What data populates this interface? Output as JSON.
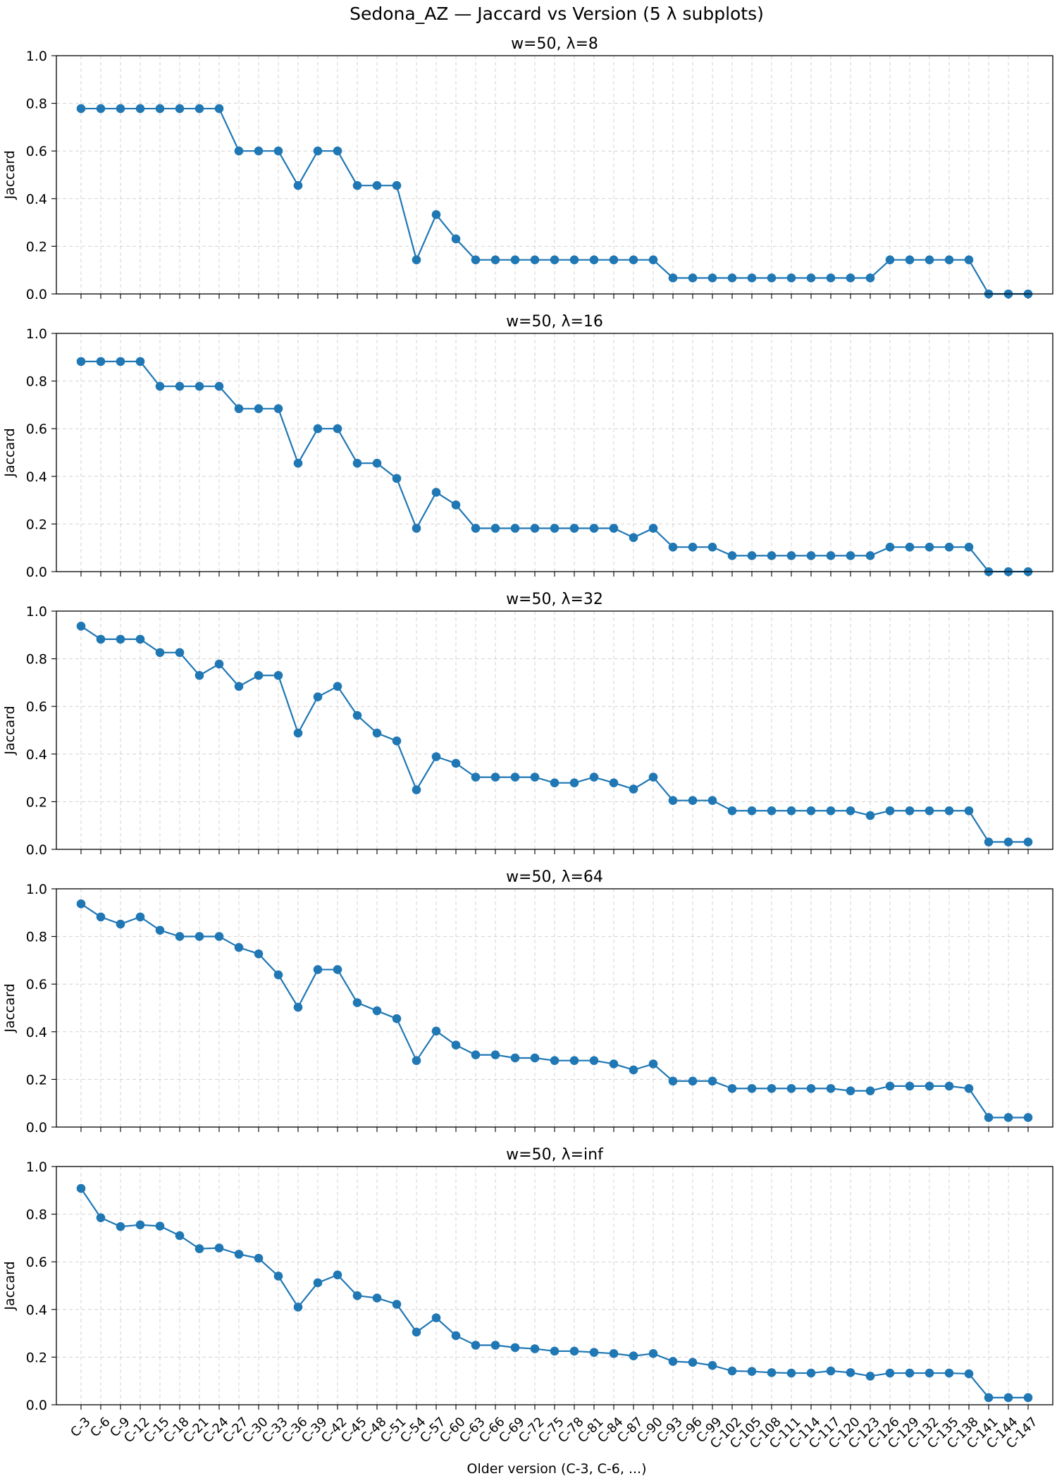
{
  "figure_title": "Sedona_AZ — Jaccard vs Version (5 λ subplots)",
  "xlabel": "Older version (C-3, C-6, ...)",
  "colors": {
    "series": "#1f77b4",
    "grid": "#b0b0b0"
  },
  "chart_data": [
    {
      "type": "line",
      "title": "w=50, λ=8",
      "ylabel": "Jaccard",
      "ylim": [
        0,
        1
      ],
      "yticks": [
        "0.0",
        "0.2",
        "0.4",
        "0.6",
        "0.8",
        "1.0"
      ],
      "grid": true,
      "categories": [
        "C-3",
        "C-6",
        "C-9",
        "C-12",
        "C-15",
        "C-18",
        "C-21",
        "C-24",
        "C-27",
        "C-30",
        "C-33",
        "C-36",
        "C-39",
        "C-42",
        "C-45",
        "C-48",
        "C-51",
        "C-54",
        "C-57",
        "C-60",
        "C-63",
        "C-66",
        "C-69",
        "C-72",
        "C-75",
        "C-78",
        "C-81",
        "C-84",
        "C-87",
        "C-90",
        "C-93",
        "C-96",
        "C-99",
        "C-102",
        "C-105",
        "C-108",
        "C-111",
        "C-114",
        "C-117",
        "C-120",
        "C-123",
        "C-126",
        "C-129",
        "C-132",
        "C-135",
        "C-138",
        "C-141",
        "C-144",
        "C-147"
      ],
      "values": [
        0.778,
        0.778,
        0.778,
        0.778,
        0.778,
        0.778,
        0.778,
        0.778,
        0.6,
        0.6,
        0.6,
        0.455,
        0.6,
        0.6,
        0.455,
        0.455,
        0.455,
        0.143,
        0.333,
        0.231,
        0.143,
        0.143,
        0.143,
        0.143,
        0.143,
        0.143,
        0.143,
        0.143,
        0.143,
        0.143,
        0.067,
        0.067,
        0.067,
        0.067,
        0.067,
        0.067,
        0.067,
        0.067,
        0.067,
        0.067,
        0.067,
        0.143,
        0.143,
        0.143,
        0.143,
        0.143,
        0.0,
        0.0,
        0.0
      ]
    },
    {
      "type": "line",
      "title": "w=50, λ=16",
      "ylabel": "Jaccard",
      "ylim": [
        0,
        1
      ],
      "yticks": [
        "0.0",
        "0.2",
        "0.4",
        "0.6",
        "0.8",
        "1.0"
      ],
      "grid": true,
      "categories": [
        "C-3",
        "C-6",
        "C-9",
        "C-12",
        "C-15",
        "C-18",
        "C-21",
        "C-24",
        "C-27",
        "C-30",
        "C-33",
        "C-36",
        "C-39",
        "C-42",
        "C-45",
        "C-48",
        "C-51",
        "C-54",
        "C-57",
        "C-60",
        "C-63",
        "C-66",
        "C-69",
        "C-72",
        "C-75",
        "C-78",
        "C-81",
        "C-84",
        "C-87",
        "C-90",
        "C-93",
        "C-96",
        "C-99",
        "C-102",
        "C-105",
        "C-108",
        "C-111",
        "C-114",
        "C-117",
        "C-120",
        "C-123",
        "C-126",
        "C-129",
        "C-132",
        "C-135",
        "C-138",
        "C-141",
        "C-144",
        "C-147"
      ],
      "values": [
        0.882,
        0.882,
        0.882,
        0.882,
        0.778,
        0.778,
        0.778,
        0.778,
        0.684,
        0.684,
        0.684,
        0.455,
        0.6,
        0.6,
        0.455,
        0.455,
        0.391,
        0.182,
        0.333,
        0.28,
        0.182,
        0.182,
        0.182,
        0.182,
        0.182,
        0.182,
        0.182,
        0.182,
        0.143,
        0.182,
        0.103,
        0.103,
        0.103,
        0.067,
        0.067,
        0.067,
        0.067,
        0.067,
        0.067,
        0.067,
        0.067,
        0.103,
        0.103,
        0.103,
        0.103,
        0.103,
        0.0,
        0.0,
        0.0
      ]
    },
    {
      "type": "line",
      "title": "w=50, λ=32",
      "ylabel": "Jaccard",
      "ylim": [
        0,
        1
      ],
      "yticks": [
        "0.0",
        "0.2",
        "0.4",
        "0.6",
        "0.8",
        "1.0"
      ],
      "grid": true,
      "categories": [
        "C-3",
        "C-6",
        "C-9",
        "C-12",
        "C-15",
        "C-18",
        "C-21",
        "C-24",
        "C-27",
        "C-30",
        "C-33",
        "C-36",
        "C-39",
        "C-42",
        "C-45",
        "C-48",
        "C-51",
        "C-54",
        "C-57",
        "C-60",
        "C-63",
        "C-66",
        "C-69",
        "C-72",
        "C-75",
        "C-78",
        "C-81",
        "C-84",
        "C-87",
        "C-90",
        "C-93",
        "C-96",
        "C-99",
        "C-102",
        "C-105",
        "C-108",
        "C-111",
        "C-114",
        "C-117",
        "C-120",
        "C-123",
        "C-126",
        "C-129",
        "C-132",
        "C-135",
        "C-138",
        "C-141",
        "C-144",
        "C-147"
      ],
      "values": [
        0.937,
        0.882,
        0.882,
        0.882,
        0.826,
        0.826,
        0.73,
        0.778,
        0.684,
        0.73,
        0.73,
        0.488,
        0.64,
        0.684,
        0.562,
        0.488,
        0.455,
        0.25,
        0.389,
        0.361,
        0.303,
        0.303,
        0.303,
        0.303,
        0.279,
        0.279,
        0.303,
        0.279,
        0.253,
        0.303,
        0.205,
        0.205,
        0.205,
        0.162,
        0.162,
        0.162,
        0.162,
        0.162,
        0.162,
        0.162,
        0.142,
        0.162,
        0.162,
        0.162,
        0.162,
        0.162,
        0.031,
        0.031,
        0.031
      ]
    },
    {
      "type": "line",
      "title": "w=50, λ=64",
      "ylabel": "Jaccard",
      "ylim": [
        0,
        1
      ],
      "yticks": [
        "0.0",
        "0.2",
        "0.4",
        "0.6",
        "0.8",
        "1.0"
      ],
      "grid": true,
      "categories": [
        "C-3",
        "C-6",
        "C-9",
        "C-12",
        "C-15",
        "C-18",
        "C-21",
        "C-24",
        "C-27",
        "C-30",
        "C-33",
        "C-36",
        "C-39",
        "C-42",
        "C-45",
        "C-48",
        "C-51",
        "C-54",
        "C-57",
        "C-60",
        "C-63",
        "C-66",
        "C-69",
        "C-72",
        "C-75",
        "C-78",
        "C-81",
        "C-84",
        "C-87",
        "C-90",
        "C-93",
        "C-96",
        "C-99",
        "C-102",
        "C-105",
        "C-108",
        "C-111",
        "C-114",
        "C-117",
        "C-120",
        "C-123",
        "C-126",
        "C-129",
        "C-132",
        "C-135",
        "C-138",
        "C-141",
        "C-144",
        "C-147"
      ],
      "values": [
        0.937,
        0.882,
        0.852,
        0.882,
        0.826,
        0.8,
        0.8,
        0.8,
        0.754,
        0.727,
        0.639,
        0.503,
        0.661,
        0.661,
        0.522,
        0.488,
        0.455,
        0.279,
        0.403,
        0.344,
        0.303,
        0.303,
        0.29,
        0.29,
        0.279,
        0.279,
        0.279,
        0.265,
        0.24,
        0.265,
        0.193,
        0.193,
        0.193,
        0.162,
        0.162,
        0.162,
        0.162,
        0.162,
        0.162,
        0.152,
        0.152,
        0.172,
        0.172,
        0.172,
        0.172,
        0.162,
        0.04,
        0.04,
        0.04
      ]
    },
    {
      "type": "line",
      "title": "w=50, λ=inf",
      "ylabel": "Jaccard",
      "ylim": [
        0,
        1
      ],
      "yticks": [
        "0.0",
        "0.2",
        "0.4",
        "0.6",
        "0.8",
        "1.0"
      ],
      "grid": true,
      "categories": [
        "C-3",
        "C-6",
        "C-9",
        "C-12",
        "C-15",
        "C-18",
        "C-21",
        "C-24",
        "C-27",
        "C-30",
        "C-33",
        "C-36",
        "C-39",
        "C-42",
        "C-45",
        "C-48",
        "C-51",
        "C-54",
        "C-57",
        "C-60",
        "C-63",
        "C-66",
        "C-69",
        "C-72",
        "C-75",
        "C-78",
        "C-81",
        "C-84",
        "C-87",
        "C-90",
        "C-93",
        "C-96",
        "C-99",
        "C-102",
        "C-105",
        "C-108",
        "C-111",
        "C-114",
        "C-117",
        "C-120",
        "C-123",
        "C-126",
        "C-129",
        "C-132",
        "C-135",
        "C-138",
        "C-141",
        "C-144",
        "C-147"
      ],
      "values": [
        0.908,
        0.785,
        0.748,
        0.755,
        0.75,
        0.71,
        0.655,
        0.658,
        0.632,
        0.615,
        0.54,
        0.41,
        0.512,
        0.545,
        0.458,
        0.448,
        0.422,
        0.305,
        0.365,
        0.29,
        0.25,
        0.25,
        0.24,
        0.235,
        0.225,
        0.225,
        0.22,
        0.215,
        0.205,
        0.215,
        0.182,
        0.178,
        0.165,
        0.142,
        0.14,
        0.135,
        0.133,
        0.133,
        0.142,
        0.135,
        0.12,
        0.133,
        0.133,
        0.133,
        0.133,
        0.13,
        0.03,
        0.03,
        0.03
      ]
    }
  ]
}
